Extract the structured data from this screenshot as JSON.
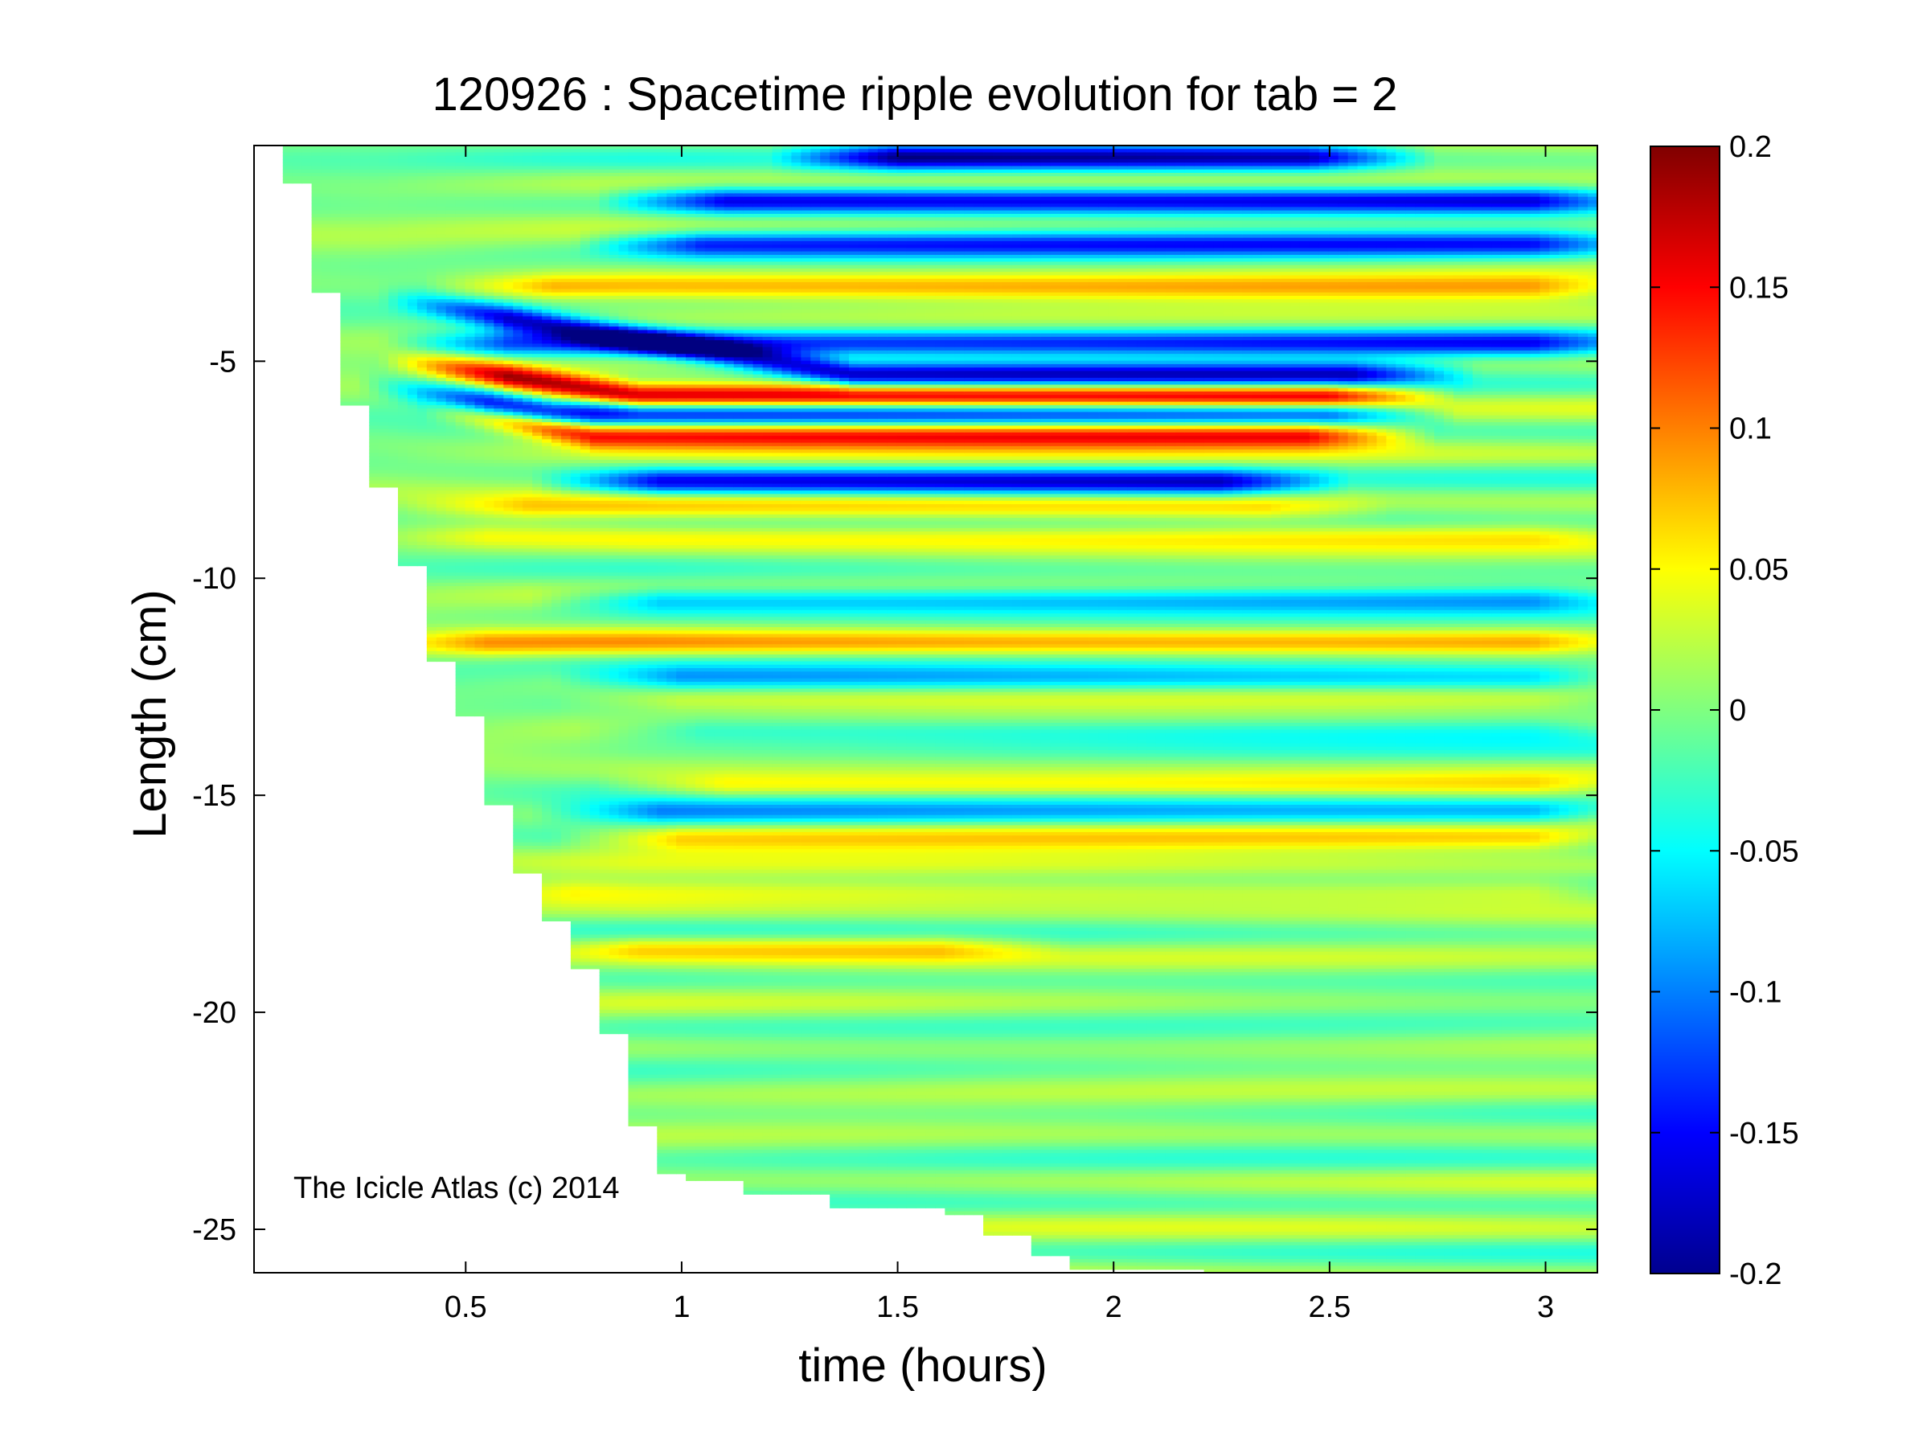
{
  "chart_data": {
    "type": "heatmap",
    "title": "120926 : Spacetime ripple evolution for tab = 2",
    "xlabel": "time (hours)",
    "ylabel": "Length (cm)",
    "xlim": [
      0.01,
      3.12
    ],
    "ylim": [
      -26.0,
      -0.03
    ],
    "xticks": [
      0.5,
      1,
      1.5,
      2,
      2.5,
      3
    ],
    "xtick_labels": [
      "0.5",
      "1",
      "1.5",
      "2",
      "2.5",
      "3"
    ],
    "yticks": [
      -5,
      -10,
      -15,
      -20,
      -25
    ],
    "ytick_labels": [
      "-5",
      "-10",
      "-15",
      "-20",
      "-25"
    ],
    "colormap": "jet",
    "clim": [
      -0.2,
      0.2
    ],
    "colorbar_ticks": [
      0.2,
      0.15,
      0.1,
      0.05,
      0,
      -0.05,
      -0.1,
      -0.15,
      -0.2
    ],
    "colorbar_tick_labels": [
      "0.2",
      "0.15",
      "0.1",
      "0.05",
      "0",
      "-0.05",
      "-0.1",
      "-0.15",
      "-0.2"
    ],
    "grid": false,
    "description_of_data_region": "Data exist only to the right of a stepped boundary: icicle length grows downward over time.",
    "growth_boundary": [
      {
        "time": 0.07,
        "length": -0.9
      },
      {
        "time": 0.14,
        "length": -3.4
      },
      {
        "time": 0.2,
        "length": -6.0
      },
      {
        "time": 0.27,
        "length": -7.9
      },
      {
        "time": 0.34,
        "length": -9.7
      },
      {
        "time": 0.41,
        "length": -11.9
      },
      {
        "time": 0.47,
        "length": -13.2
      },
      {
        "time": 0.54,
        "length": -15.2
      },
      {
        "time": 0.61,
        "length": -16.8
      },
      {
        "time": 0.68,
        "length": -17.9
      },
      {
        "time": 0.74,
        "length": -19.0
      },
      {
        "time": 0.81,
        "length": -20.5
      },
      {
        "time": 0.88,
        "length": -22.6
      },
      {
        "time": 0.95,
        "length": -23.7
      },
      {
        "time": 1.02,
        "length": -23.9
      },
      {
        "time": 1.15,
        "length": -24.2
      },
      {
        "time": 1.35,
        "length": -24.5
      },
      {
        "time": 1.6,
        "length": -24.7
      },
      {
        "time": 1.7,
        "length": -25.1
      },
      {
        "time": 1.8,
        "length": -25.6
      },
      {
        "time": 1.9,
        "length": -25.9
      },
      {
        "time": 2.2,
        "length": -26.0
      },
      {
        "time": 3.12,
        "length": -26.0
      }
    ],
    "features": [
      {
        "length": -5.8,
        "value": 0.19,
        "t_start": 0.45,
        "t_end": 2.65,
        "slope_start": 0.35,
        "slope_len": 0.55
      },
      {
        "length": -6.7,
        "value": 0.17,
        "t_start": 0.55,
        "t_end": 2.6,
        "slope_start": 0.3,
        "slope_len": 0.5
      },
      {
        "length": -5.3,
        "value": -0.17,
        "t_start": 0.45,
        "t_end": 2.7,
        "slope_start": 0.9,
        "slope_len": 0.5
      },
      {
        "length": -6.2,
        "value": -0.16,
        "t_start": 0.4,
        "t_end": 2.65,
        "slope_start": 0.2,
        "slope_len": 0.5
      },
      {
        "length": -4.6,
        "value": -0.13,
        "t_start": 0.45,
        "t_end": 3.12
      },
      {
        "length": -7.8,
        "value": -0.15,
        "t_start": 0.8,
        "t_end": 2.4
      },
      {
        "length": -3.3,
        "value": 0.09,
        "t_start": 0.55,
        "t_end": 3.12
      },
      {
        "length": -2.3,
        "value": -0.13,
        "t_start": 0.9,
        "t_end": 3.12
      },
      {
        "length": -1.3,
        "value": -0.15,
        "t_start": 0.95,
        "t_end": 3.12
      },
      {
        "length": -0.3,
        "value": -0.17,
        "t_start": 1.35,
        "t_end": 2.6
      },
      {
        "length": -11.5,
        "value": 0.08,
        "t_start": 0.4,
        "t_end": 3.12
      },
      {
        "length": -10.5,
        "value": -0.09,
        "t_start": 0.8,
        "t_end": 3.12
      },
      {
        "length": -12.3,
        "value": -0.09,
        "t_start": 0.85,
        "t_end": 3.12
      },
      {
        "length": -12.8,
        "value": 0.04,
        "t_start": 0.85,
        "t_end": 3.12
      },
      {
        "length": -13.5,
        "value": -0.05,
        "t_start": 0.9,
        "t_end": 3.12
      },
      {
        "length": -14.8,
        "value": 0.07,
        "t_start": 0.95,
        "t_end": 3.12
      },
      {
        "length": -15.4,
        "value": -0.11,
        "t_start": 0.8,
        "t_end": 3.12
      },
      {
        "length": -16.0,
        "value": 0.09,
        "t_start": 0.85,
        "t_end": 3.12
      },
      {
        "length": -17.2,
        "value": 0.06,
        "t_start": 0.6,
        "t_end": 3.12
      },
      {
        "length": -18.5,
        "value": 0.06,
        "t_start": 0.75,
        "t_end": 1.75
      },
      {
        "length": -9.0,
        "value": 0.05,
        "t_start": 0.4,
        "t_end": 3.12
      },
      {
        "length": -8.4,
        "value": 0.06,
        "t_start": 0.5,
        "t_end": 2.5
      }
    ]
  },
  "watermark": "The Icicle Atlas (c) 2014"
}
